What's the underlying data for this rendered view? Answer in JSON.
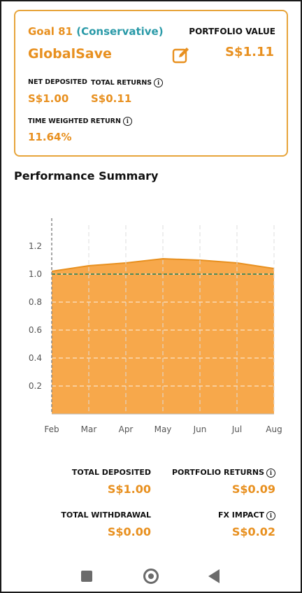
{
  "goal": {
    "label": "Goal 81",
    "risk_open": "(",
    "risk": "Conservative",
    "risk_close": ")",
    "name": "GlobalSave"
  },
  "portfolio": {
    "label": "PORTFOLIO VALUE",
    "value": "S$1.11"
  },
  "stats": {
    "net_deposited_label": "NET DEPOSITED",
    "net_deposited_value": "S$1.00",
    "total_returns_label": "TOTAL RETURNS",
    "total_returns_value": "S$0.11",
    "twr_label": "TIME WEIGHTED RETURN",
    "twr_value": "11.64%"
  },
  "section_title": "Performance Summary",
  "chart_data": {
    "type": "area",
    "x": [
      "Feb",
      "Mar",
      "Apr",
      "May",
      "Jun",
      "Jul",
      "Aug"
    ],
    "series": [
      {
        "values": [
          1.02,
          1.06,
          1.08,
          1.11,
          1.1,
          1.08,
          1.04
        ],
        "color": "#f7a84b"
      },
      {
        "values": [
          1.0,
          1.0,
          1.0,
          1.0,
          1.0,
          1.0,
          1.0
        ],
        "color": "#4f8a5b",
        "style": "dashed"
      }
    ],
    "yticks": [
      "0.2",
      "0.4",
      "0.6",
      "0.8",
      "1.0",
      "1.2"
    ],
    "ylim": [
      0,
      1.35
    ],
    "grid": true
  },
  "summary": {
    "total_deposited_label": "TOTAL DEPOSITED",
    "total_deposited_value": "S$1.00",
    "portfolio_returns_label": "PORTFOLIO RETURNS",
    "portfolio_returns_value": "S$0.09",
    "total_withdrawal_label": "TOTAL WITHDRAWAL",
    "total_withdrawal_value": "S$0.00",
    "fx_impact_label": "FX IMPACT",
    "fx_impact_value": "S$0.02"
  },
  "icons": {
    "edit": "edit-icon",
    "info": "info-icon",
    "nav_recent": "square-icon",
    "nav_home": "circle-icon",
    "nav_back": "triangle-back-icon"
  },
  "colors": {
    "accent": "#e8901f",
    "teal": "#2a9aa8",
    "area": "#f7a84b"
  }
}
